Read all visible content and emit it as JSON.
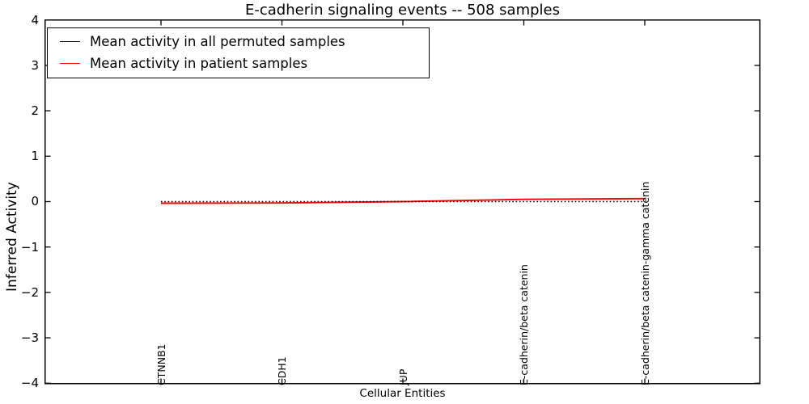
{
  "chart_data": {
    "type": "line",
    "title": "E-cadherin signaling events -- 508 samples",
    "xlabel": "Cellular Entities",
    "ylabel": "Inferred Activity",
    "categories": [
      "CTNNB1",
      "CDH1",
      "JUP",
      "E-cadherin/beta catenin",
      "E-cadherin/beta catenin-gamma catenin"
    ],
    "series": [
      {
        "name": "Mean activity in all permuted samples",
        "color": "#000000",
        "line_style": "dotted",
        "values": [
          0.0,
          0.0,
          0.0,
          0.0,
          0.0
        ]
      },
      {
        "name": "Mean activity in patient samples",
        "color": "#ff0000",
        "line_style": "solid",
        "values": [
          -0.035,
          -0.03,
          0.0,
          0.05,
          0.065
        ]
      }
    ],
    "ylim": [
      -4,
      4
    ],
    "yticks": [
      4,
      3,
      2,
      1,
      0,
      -1,
      -2,
      -3,
      -4
    ],
    "ytick_labels": [
      "4",
      "3",
      "2",
      "1",
      "0",
      "−1",
      "−2",
      "−3",
      "−4"
    ],
    "xtick_rotation_degrees": 90,
    "grid": false,
    "legend_position": "upper left"
  }
}
